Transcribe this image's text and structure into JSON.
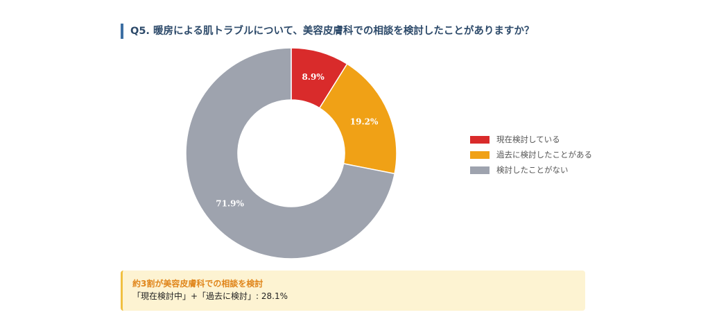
{
  "title": "Q5. 暖房による肌トラブルについて、美容皮膚科での相談を検討したことがありますか？",
  "chart_data": {
    "type": "pie",
    "donut": true,
    "categories": [
      "現在検討している",
      "過去に検討したことがある",
      "検討したことがない"
    ],
    "values": [
      8.9,
      19.2,
      71.9
    ],
    "data_labels": [
      "8.9%",
      "19.2%",
      "71.9%"
    ],
    "colors": [
      "#d92b2b",
      "#f0a116",
      "#9ea3ae"
    ],
    "legend_position": "right"
  },
  "callout": {
    "heading": "約3割が美容皮膚科での相談を検討",
    "body": "「現在検討中」+「過去に検討」: 28.1%"
  }
}
